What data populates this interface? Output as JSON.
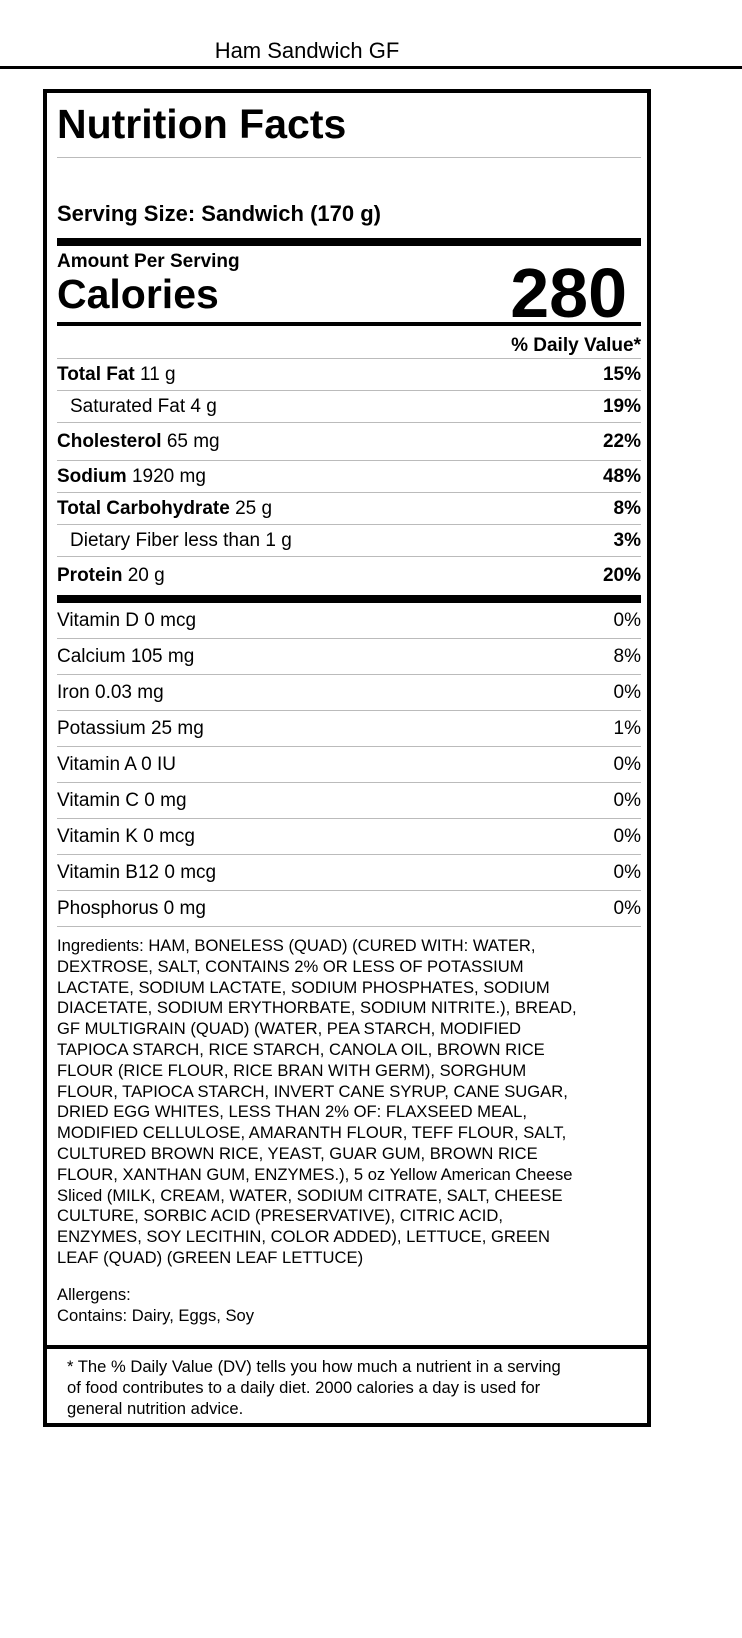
{
  "product_title": "Ham Sandwich GF",
  "label": {
    "heading": "Nutrition Facts",
    "serving_size": "Serving Size: Sandwich (170 g)",
    "amount_per_serving": "Amount Per Serving",
    "calories_label": "Calories",
    "calories_value": "280",
    "dv_header": "% Daily Value*",
    "nutrients": [
      {
        "name": "Total Fat",
        "amount": "11 g",
        "dv": "15%"
      },
      {
        "name": "Saturated Fat",
        "amount": "4 g",
        "dv": "19%"
      },
      {
        "name": "Cholesterol",
        "amount": "65 mg",
        "dv": "22%"
      },
      {
        "name": "Sodium",
        "amount": "1920 mg",
        "dv": "48%"
      },
      {
        "name": "Total Carbohydrate",
        "amount": "25 g",
        "dv": "8%"
      },
      {
        "name": "Dietary Fiber",
        "amount": "less than 1 g",
        "dv": "3%"
      },
      {
        "name": "Protein",
        "amount": "20 g",
        "dv": "20%"
      }
    ],
    "vitamins": [
      {
        "label": "Vitamin D 0 mcg",
        "dv": "0%"
      },
      {
        "label": "Calcium 105 mg",
        "dv": "8%"
      },
      {
        "label": "Iron 0.03 mg",
        "dv": "0%"
      },
      {
        "label": "Potassium 25 mg",
        "dv": "1%"
      },
      {
        "label": "Vitamin A 0 IU",
        "dv": "0%"
      },
      {
        "label": "Vitamin C 0 mg",
        "dv": "0%"
      },
      {
        "label": "Vitamin K 0 mcg",
        "dv": "0%"
      },
      {
        "label": "Vitamin B12 0 mcg",
        "dv": "0%"
      },
      {
        "label": "Phosphorus 0 mg",
        "dv": "0%"
      }
    ],
    "ingredients_lines": [
      "Ingredients: HAM, BONELESS (QUAD) (CURED WITH: WATER,",
      "DEXTROSE, SALT, CONTAINS 2% OR LESS OF POTASSIUM",
      "LACTATE, SODIUM LACTATE, SODIUM PHOSPHATES, SODIUM",
      "DIACETATE, SODIUM ERYTHORBATE, SODIUM NITRITE.), BREAD,",
      "GF MULTIGRAIN (QUAD) (WATER, PEA STARCH, MODIFIED",
      "TAPIOCA STARCH, RICE STARCH, CANOLA OIL, BROWN RICE",
      "FLOUR (RICE FLOUR, RICE BRAN WITH GERM), SORGHUM",
      "FLOUR, TAPIOCA STARCH, INVERT CANE SYRUP, CANE SUGAR,",
      "DRIED EGG WHITES, LESS THAN 2% OF: FLAXSEED MEAL,",
      "MODIFIED CELLULOSE, AMARANTH FLOUR, TEFF FLOUR, SALT,",
      "CULTURED BROWN RICE, YEAST, GUAR GUM, BROWN RICE",
      "FLOUR, XANTHAN GUM, ENZYMES.), 5 oz Yellow American Cheese",
      "Sliced (MILK, CREAM, WATER, SODIUM CITRATE, SALT, CHEESE",
      "CULTURE, SORBIC ACID (PRESERVATIVE), CITRIC ACID,",
      "ENZYMES, SOY LECITHIN, COLOR ADDED), LETTUCE, GREEN",
      "LEAF (QUAD) (GREEN LEAF LETTUCE)"
    ],
    "allergens_label": "Allergens:",
    "allergens": "Contains: Dairy, Eggs, Soy",
    "footnote_lines": [
      "* The % Daily Value (DV) tells you how much a nutrient in a serving",
      "of food contributes to a daily diet. 2000 calories a day is used for",
      "general nutrition advice."
    ]
  }
}
